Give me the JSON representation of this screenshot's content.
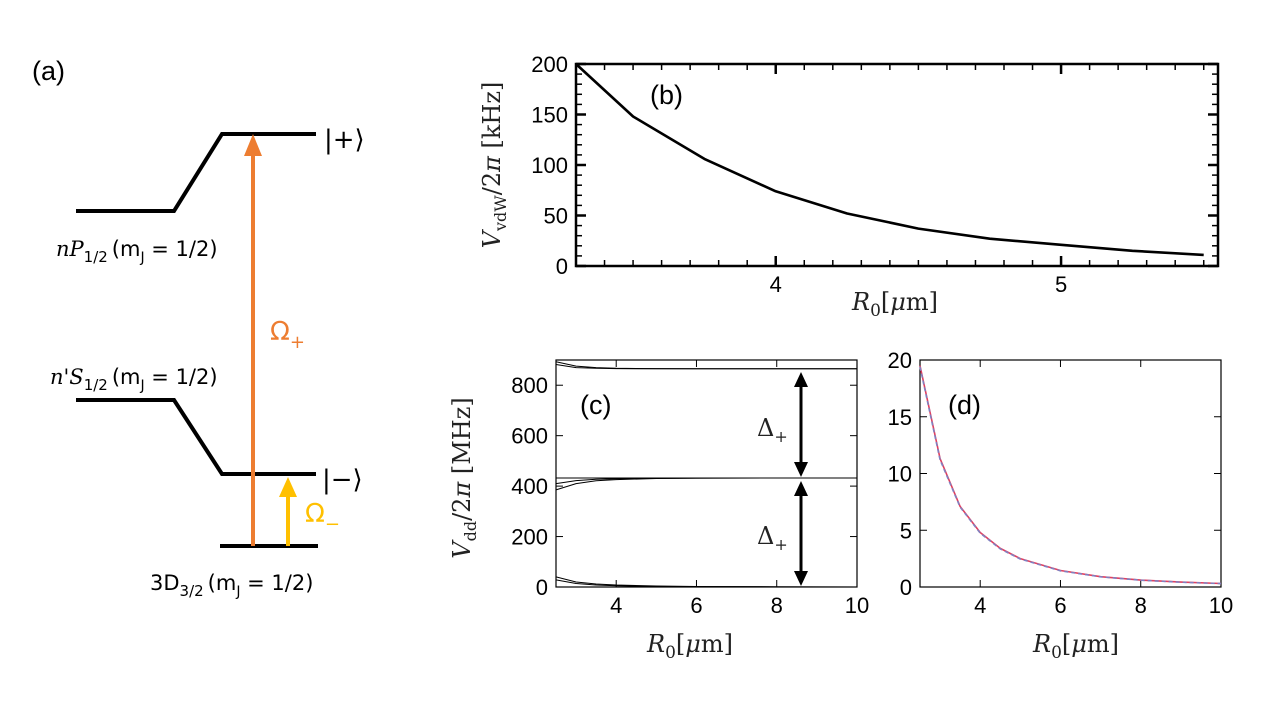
{
  "panel_a": {
    "label": "(a)",
    "levels": {
      "np": {
        "name": "nP",
        "sub": "1/2",
        "quantum": "(m",
        "quantum_sub": "J",
        "quantum_val": " = 1/2)"
      },
      "ns": {
        "name": "n'S",
        "sub": "1/2",
        "quantum": "(m",
        "quantum_sub": "J",
        "quantum_val": " = 1/2)"
      },
      "d": {
        "name": "3D",
        "sub": "3/2",
        "quantum": "(m",
        "quantum_sub": "J",
        "quantum_val": " = 1/2)"
      }
    },
    "states": {
      "plus": "|+⟩",
      "minus": "|−⟩"
    },
    "couplings": {
      "plus": {
        "symbol": "Ω",
        "sub": "+",
        "color": "#ED7D31"
      },
      "minus": {
        "symbol": "Ω",
        "sub": "−",
        "color": "#FFC000"
      }
    }
  },
  "chart_data": [
    {
      "id": "b",
      "type": "line",
      "panel_label": "(b)",
      "xlabel": "R₀[μm]",
      "ylabel": "V_vdW/2π [kHz]",
      "xlim": [
        3.3,
        5.55
      ],
      "ylim": [
        0,
        200
      ],
      "xticks": [
        4,
        5
      ],
      "yticks": [
        0,
        50,
        100,
        150,
        200
      ],
      "series": [
        {
          "name": "V_vdW",
          "x": [
            3.3,
            3.5,
            3.75,
            4.0,
            4.25,
            4.5,
            4.75,
            5.0,
            5.25,
            5.5
          ],
          "values": [
            200,
            148,
            106,
            74,
            52,
            37,
            27,
            21,
            15,
            11
          ]
        }
      ]
    },
    {
      "id": "c",
      "type": "line",
      "panel_label": "(c)",
      "xlabel": "R₀[μm]",
      "ylabel": "V_dd/2π [MHz]",
      "xlim": [
        2.5,
        10
      ],
      "ylim": [
        0,
        900
      ],
      "xticks": [
        4,
        6,
        8,
        10
      ],
      "yticks": [
        0,
        200,
        400,
        600,
        800
      ],
      "annotations": [
        {
          "text": "Δ",
          "sub": "+"
        },
        {
          "text": "Δ",
          "sub": "+"
        }
      ],
      "series": [
        {
          "name": "upper-1",
          "x": [
            2.5,
            3,
            3.5,
            4,
            5,
            6,
            8,
            10
          ],
          "values": [
            893,
            876,
            870,
            867,
            866,
            865,
            865,
            865
          ]
        },
        {
          "name": "upper-2",
          "x": [
            2.5,
            3,
            3.5,
            4,
            5,
            6,
            8,
            10
          ],
          "values": [
            882,
            870,
            867,
            866,
            865,
            865,
            865,
            865
          ]
        },
        {
          "name": "mid-flat",
          "x": [
            2.5,
            10
          ],
          "values": [
            432,
            432
          ]
        },
        {
          "name": "mid-1",
          "x": [
            2.5,
            3,
            3.5,
            4,
            5,
            6,
            8,
            10
          ],
          "values": [
            410,
            422,
            427,
            429,
            431,
            432,
            432,
            432
          ]
        },
        {
          "name": "mid-2",
          "x": [
            2.5,
            3,
            3.5,
            4,
            5,
            6,
            8,
            10
          ],
          "values": [
            385,
            410,
            421,
            426,
            430,
            431,
            432,
            432
          ]
        },
        {
          "name": "lower-1",
          "x": [
            2.5,
            3,
            3.5,
            4,
            5,
            6,
            8,
            10
          ],
          "values": [
            40,
            20,
            12,
            8,
            4,
            2,
            1,
            0
          ]
        },
        {
          "name": "lower-2",
          "x": [
            2.5,
            3,
            3.5,
            4,
            5,
            6,
            8,
            10
          ],
          "values": [
            28,
            14,
            8,
            5,
            2,
            1,
            0,
            0
          ]
        }
      ]
    },
    {
      "id": "d",
      "type": "line",
      "panel_label": "(d)",
      "xlabel": "R₀[μm]",
      "ylabel": "",
      "xlim": [
        2.5,
        10
      ],
      "ylim": [
        0,
        20
      ],
      "xticks": [
        4,
        6,
        8,
        10
      ],
      "yticks": [
        0,
        5,
        10,
        15,
        20
      ],
      "series": [
        {
          "name": "exact",
          "color": "#E04060",
          "x": [
            2.5,
            3,
            3.5,
            4,
            4.5,
            5,
            6,
            7,
            8,
            9,
            10
          ],
          "values": [
            19.5,
            11.3,
            7.1,
            4.8,
            3.4,
            2.5,
            1.45,
            0.91,
            0.61,
            0.43,
            0.31
          ]
        },
        {
          "name": "fit",
          "color": "#8080C0",
          "dashed": true,
          "x": [
            2.5,
            3,
            3.5,
            4,
            4.5,
            5,
            6,
            7,
            8,
            9,
            10
          ],
          "values": [
            19.4,
            11.2,
            7.05,
            4.75,
            3.36,
            2.47,
            1.43,
            0.9,
            0.6,
            0.42,
            0.3
          ]
        }
      ]
    }
  ]
}
